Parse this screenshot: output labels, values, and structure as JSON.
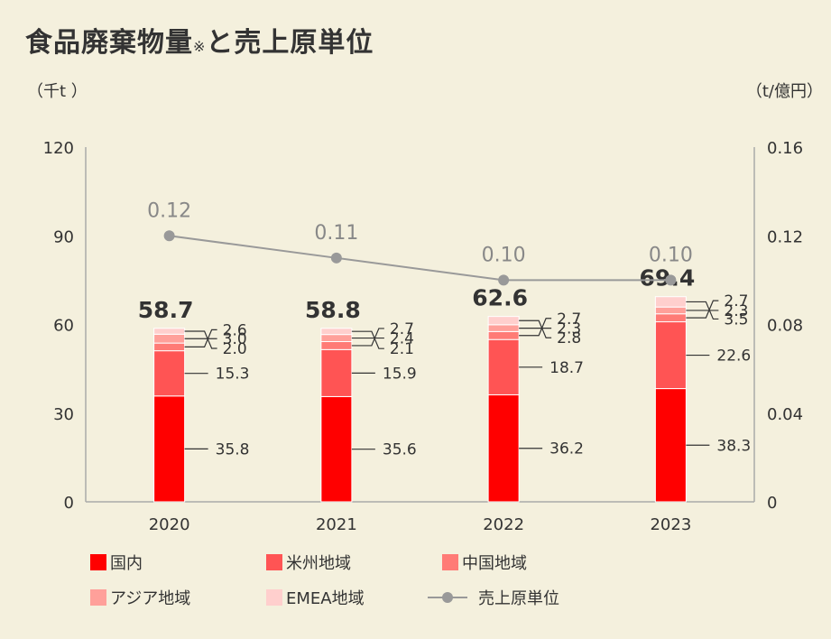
{
  "title": "食品廃棄物量",
  "title_note": "※",
  "title_suffix": "と売上原単位",
  "chart_data": {
    "type": "bar",
    "stacked": true,
    "categories": [
      "2020",
      "2021",
      "2022",
      "2023"
    ],
    "series": [
      {
        "name": "国内",
        "color": "#ff0000",
        "values": [
          35.8,
          35.6,
          36.2,
          38.3
        ]
      },
      {
        "name": "米州地域",
        "color": "#ff5454",
        "values": [
          15.3,
          15.9,
          18.7,
          22.6
        ]
      },
      {
        "name": "中国地域",
        "color": "#ff7b76",
        "values": [
          2.6,
          2.7,
          2.7,
          2.7
        ]
      },
      {
        "name": "アジア地域",
        "color": "#ffa09a",
        "values": [
          3.0,
          2.4,
          2.3,
          2.3
        ]
      },
      {
        "name": "EMEA地域",
        "color": "#ffcfcd",
        "values": [
          2.0,
          2.1,
          2.8,
          3.5
        ]
      }
    ],
    "totals": [
      "58.7",
      "58.8",
      "62.6",
      "69.4"
    ],
    "line": {
      "name": "売上原単位",
      "color": "#999999",
      "values": [
        0.12,
        0.11,
        0.1,
        0.1
      ],
      "labels": [
        "0.12",
        "0.11",
        "0.10",
        "0.10"
      ]
    },
    "y_left": {
      "unit": "（千t ）",
      "min": 0,
      "max": 120,
      "ticks": [
        "0",
        "30",
        "60",
        "90",
        "120"
      ]
    },
    "y_right": {
      "unit": "（t/億円）",
      "min": 0,
      "max": 0.16,
      "ticks": [
        "0",
        "0.04",
        "0.08",
        "0.12",
        "0.16"
      ]
    },
    "grid": false,
    "legend_position": "bottom"
  }
}
